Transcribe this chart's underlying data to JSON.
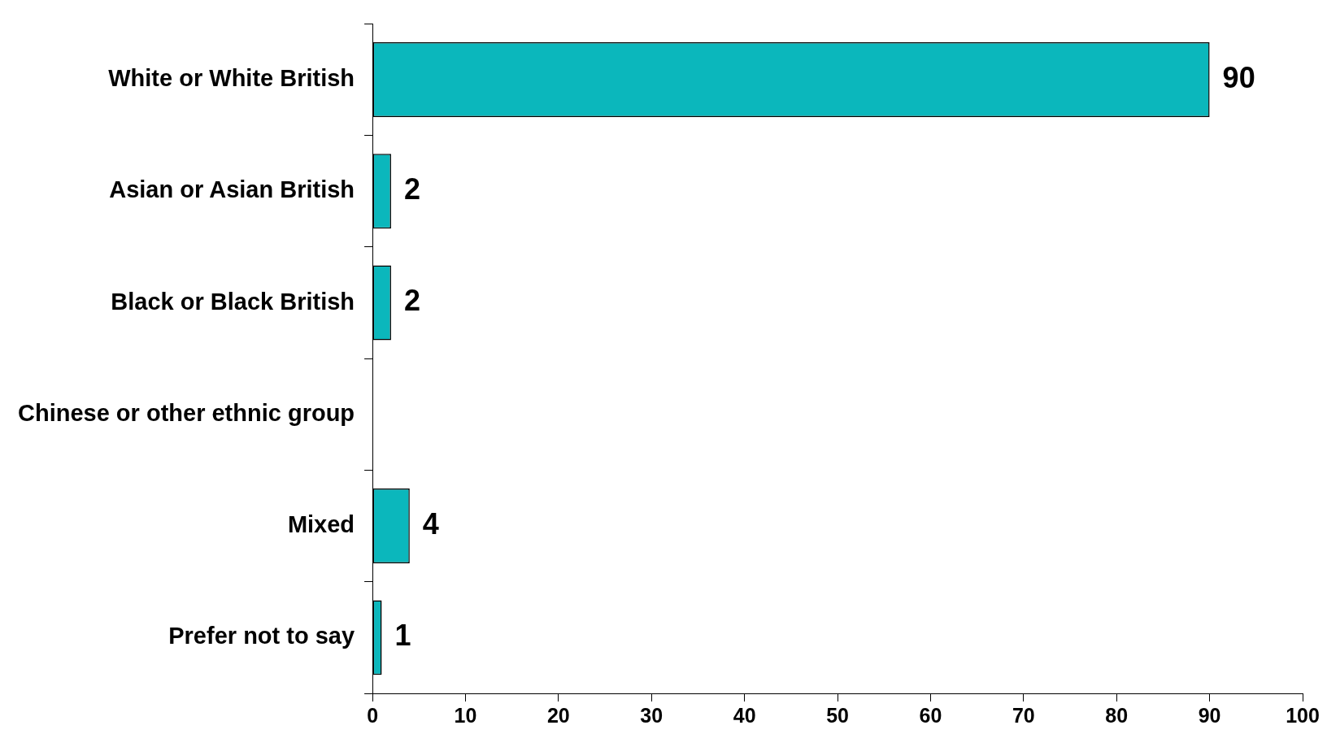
{
  "chart_data": {
    "type": "bar",
    "orientation": "horizontal",
    "categories": [
      "White or White British",
      "Asian or Asian British",
      "Black or Black British",
      "Chinese or other ethnic group",
      "Mixed",
      "Prefer not to say"
    ],
    "values": [
      90,
      2,
      2,
      0,
      4,
      1
    ],
    "value_labels": [
      "90",
      "2",
      "2",
      null,
      "4",
      "1"
    ],
    "color": "#0bb7bc",
    "xlim": [
      0,
      100
    ],
    "xticks": [
      0,
      10,
      20,
      30,
      40,
      50,
      60,
      70,
      80,
      90,
      100
    ],
    "grid": false,
    "legend": false
  }
}
